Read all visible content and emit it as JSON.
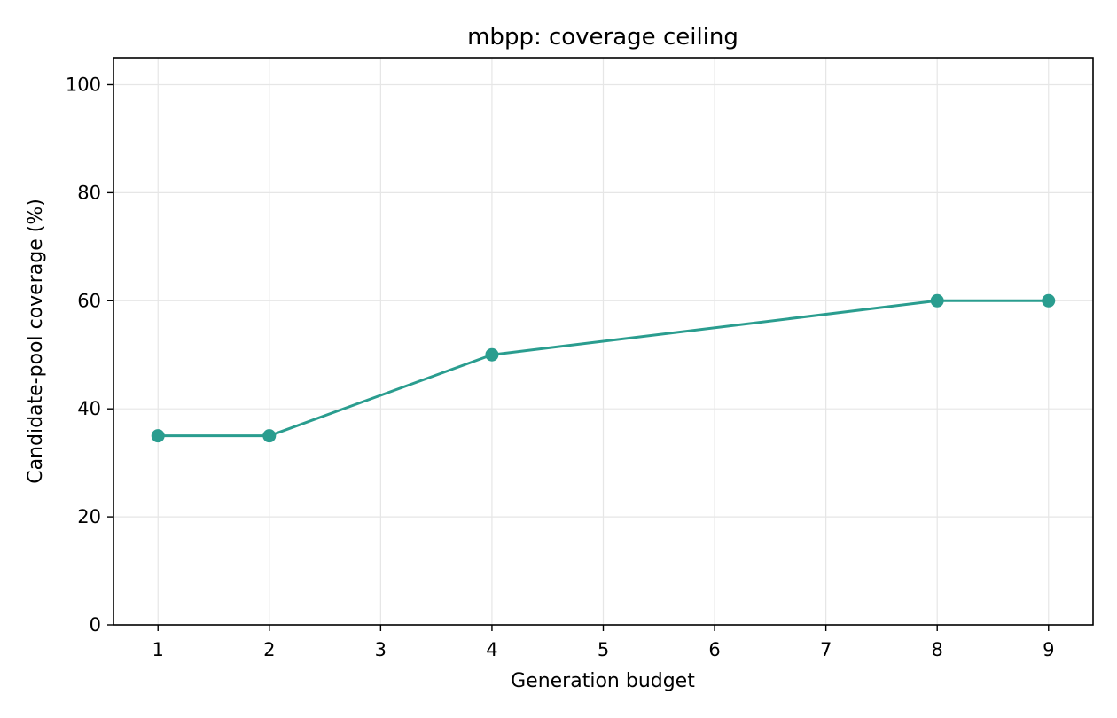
{
  "chart_data": {
    "type": "line",
    "title": "mbpp: coverage ceiling",
    "xlabel": "Generation budget",
    "ylabel": "Candidate-pool coverage (%)",
    "xlim": [
      0.6,
      9.4
    ],
    "ylim": [
      0,
      105
    ],
    "x_ticks": [
      1,
      2,
      3,
      4,
      5,
      6,
      7,
      8,
      9
    ],
    "y_ticks": [
      0,
      20,
      40,
      60,
      80,
      100
    ],
    "grid": true,
    "legend": "none",
    "series": [
      {
        "color": "#2a9d8f",
        "x": [
          1,
          2,
          4,
          8,
          9
        ],
        "y": [
          35,
          35,
          50,
          60,
          60
        ]
      }
    ]
  }
}
